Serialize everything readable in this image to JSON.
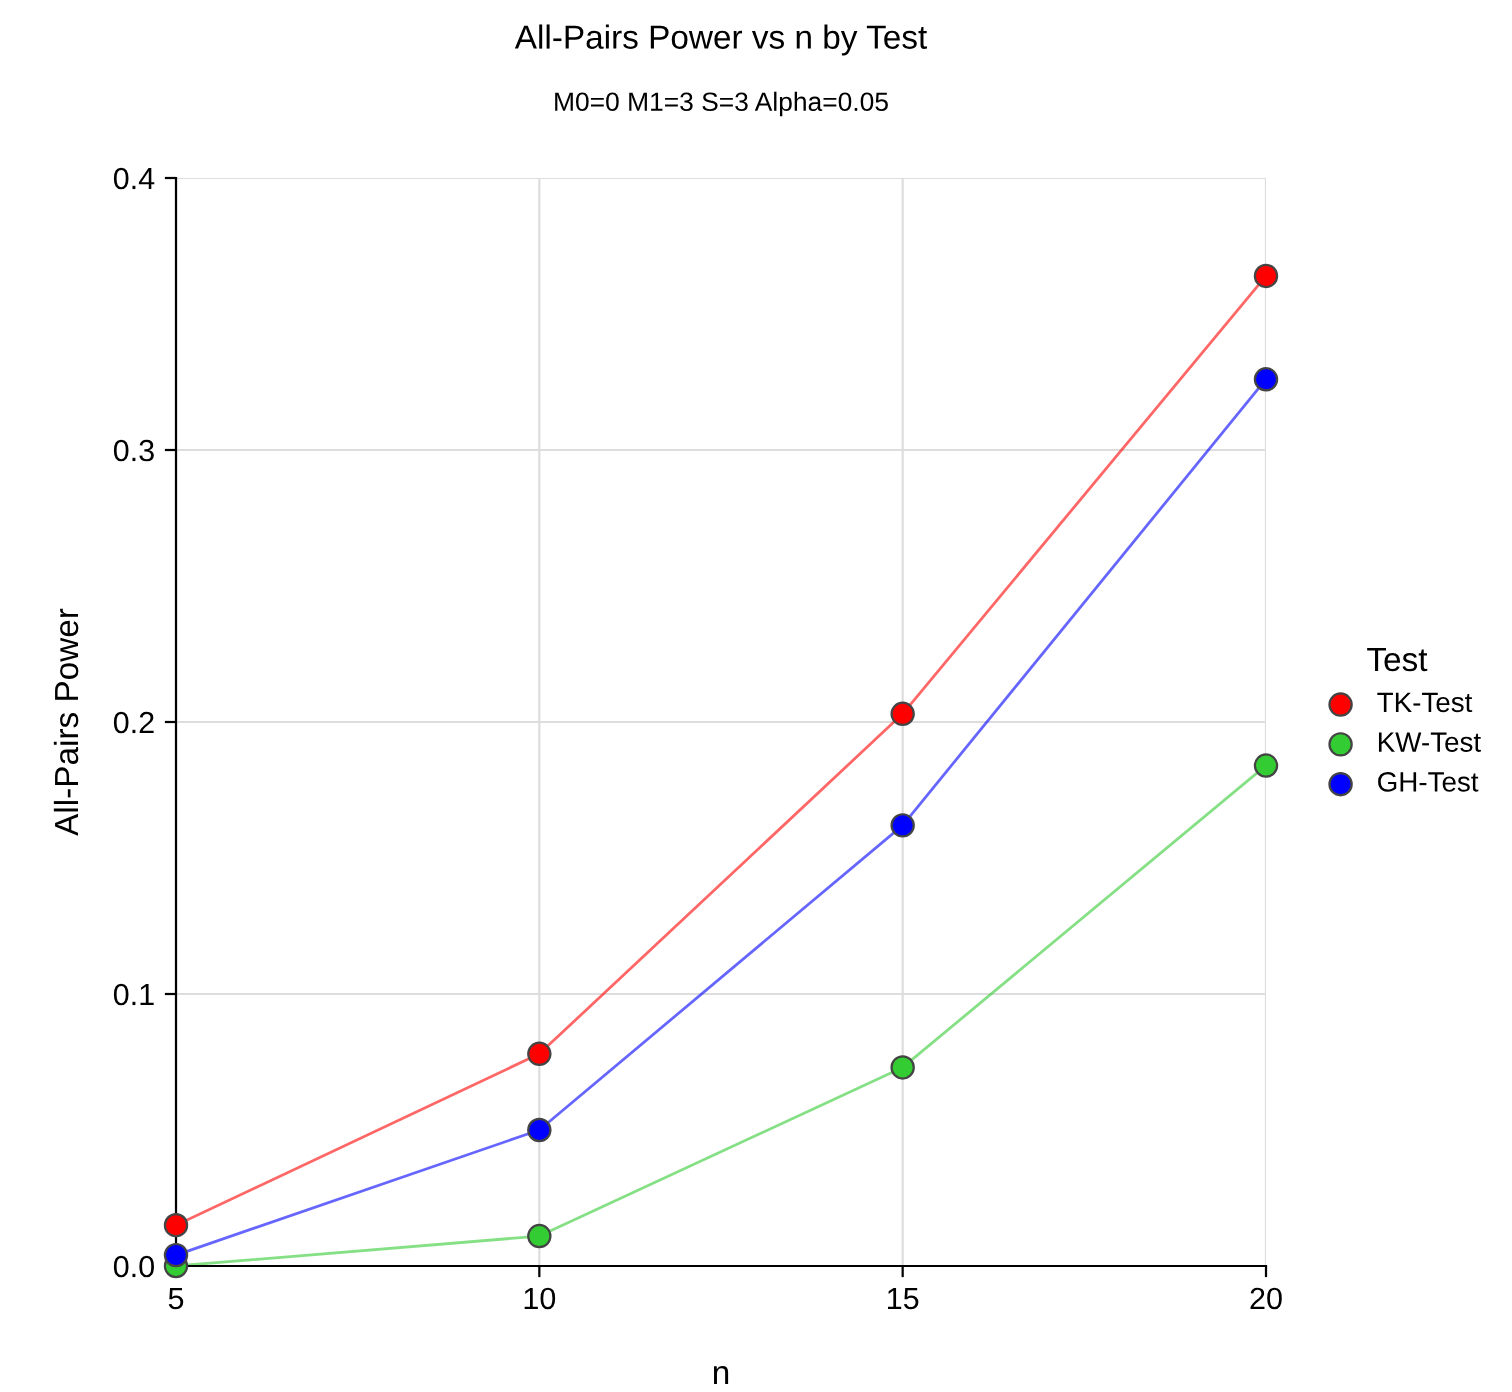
{
  "chart_data": {
    "type": "line",
    "title": "All-Pairs Power vs n by Test",
    "subtitle": "M0=0 M1=3 S=3 Alpha=0.05",
    "xlabel": "n",
    "ylabel": "All-Pairs Power",
    "legend_title": "Test",
    "x": [
      5,
      10,
      15,
      20
    ],
    "series": [
      {
        "name": "TK-Test",
        "color": "#ff0000",
        "values": [
          0.015,
          0.078,
          0.203,
          0.364
        ]
      },
      {
        "name": "KW-Test",
        "color": "#33cc33",
        "values": [
          0.0,
          0.011,
          0.073,
          0.184
        ]
      },
      {
        "name": "GH-Test",
        "color": "#0000ff",
        "values": [
          0.004,
          0.05,
          0.162,
          0.326
        ]
      }
    ],
    "xlim": [
      5,
      20
    ],
    "xticks": [
      5,
      10,
      15,
      20
    ],
    "ylim": [
      0,
      0.4
    ],
    "yticks": [
      {
        "value": 0,
        "label": "0.0"
      },
      0.1,
      0.2,
      0.3,
      0.4
    ],
    "grid": true,
    "legend": "right",
    "marker": "circle",
    "line_style": "solid"
  }
}
